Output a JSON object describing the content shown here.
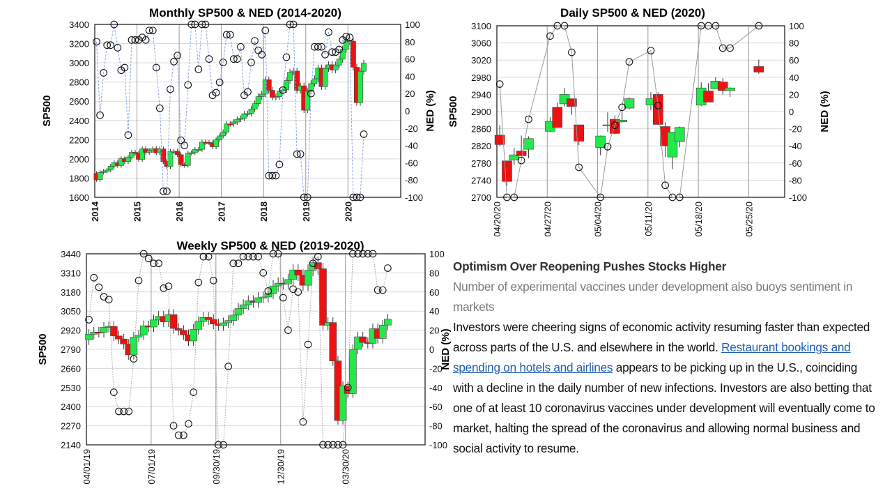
{
  "article": {
    "headline": "Optimism Over Reopening Pushes Stocks Higher",
    "subheadline": "Number of experimental vaccines under development also buoys sentiment in markets",
    "body_before_link": "Investors were cheering signs of economic activity resuming faster than expected across parts of the U.S. and elsewhere in the world. ",
    "link_text": "Restaurant bookings and spending on hotels and airlines",
    "body_after_link": " appears to be picking up in the U.S., coinciding with a decline in the daily number of new infections. Investors are also betting that one of at least 10 coronavirus vaccines under development will eventually come to market, halting the spread of the coronavirus and allowing normal business and social activity to resume."
  },
  "colors": {
    "up": "#22e84a",
    "down": "#ee1111",
    "monthly_line": "#8aa6dc",
    "ned_line": "#999999"
  },
  "chart_data": [
    {
      "id": "monthly",
      "type": "candlestick+line",
      "title": "Monthly SP500 & NED (2014-2020)",
      "ylabel": "SP500",
      "y2label": "NED (%)",
      "ylim": [
        1600,
        3400
      ],
      "y2lim": [
        -100,
        100
      ],
      "yticks": [
        "1600",
        "1800",
        "2000",
        "2200",
        "2400",
        "2600",
        "2800",
        "3000",
        "3200",
        "3400"
      ],
      "y2ticks": [
        "-100",
        "-80",
        "-60",
        "-40",
        "-20",
        "0",
        "20",
        "40",
        "60",
        "80",
        "100"
      ],
      "xticks": [
        "2014",
        "2015",
        "2016",
        "2017",
        "2018",
        "2019",
        "2020"
      ],
      "first_open": 1848,
      "close": [
        1783,
        1859,
        1872,
        1884,
        1924,
        1960,
        1931,
        2003,
        1972,
        2018,
        2068,
        2059,
        1995,
        2105,
        2068,
        2086,
        2107,
        2063,
        2104,
        1972,
        1920,
        2079,
        2080,
        2044,
        1940,
        1932,
        2060,
        2065,
        2097,
        2099,
        2174,
        2171,
        2168,
        2126,
        2199,
        2239,
        2279,
        2364,
        2363,
        2384,
        2412,
        2423,
        2470,
        2472,
        2519,
        2575,
        2648,
        2674,
        2824,
        2714,
        2641,
        2648,
        2705,
        2718,
        2816,
        2902,
        2914,
        2712,
        2760,
        2507,
        2704,
        2784,
        2834,
        2946,
        2752,
        2942,
        2980,
        2926,
        2977,
        3038,
        3141,
        3231,
        3226,
        2954,
        2585,
        2912,
        2995
      ],
      "ned": [
        80,
        -5,
        44,
        76,
        76,
        100,
        73,
        47,
        50,
        -28,
        82,
        82,
        82,
        85,
        82,
        93,
        93,
        50,
        3,
        -93,
        -93,
        25,
        57,
        64,
        -34,
        -40,
        30,
        100,
        100,
        48,
        100,
        100,
        60,
        18,
        21,
        33,
        56,
        88,
        88,
        60,
        60,
        74,
        18,
        22,
        56,
        81,
        70,
        65,
        93,
        -75,
        -75,
        -75,
        -62,
        24,
        62,
        100,
        100,
        -50,
        -50,
        -100,
        -100,
        20,
        74,
        74,
        74,
        65,
        91,
        68,
        68,
        71,
        82,
        86,
        85,
        -100,
        -100,
        -100,
        -27
      ]
    },
    {
      "id": "daily",
      "type": "candlestick+line",
      "title": "Daily SP500 & NED (2020)",
      "ylabel": "SP500",
      "y2label": "NED (%)",
      "ylim": [
        2700,
        3100
      ],
      "y2lim": [
        -100,
        100
      ],
      "yticks": [
        "2700",
        "2740",
        "2780",
        "2820",
        "2860",
        "2900",
        "2940",
        "2980",
        "3020",
        "3060",
        "3100"
      ],
      "y2ticks": [
        "-100",
        "-80",
        "-60",
        "-40",
        "-20",
        "0",
        "20",
        "40",
        "60",
        "80",
        "100"
      ],
      "xticks": [
        "04/20/20",
        "04/27/20",
        "05/04/20",
        "05/11/20",
        "05/18/20",
        "05/25/20"
      ],
      "dates": [
        "04/20",
        "04/21",
        "04/22",
        "04/23",
        "04/24",
        "04/27",
        "04/28",
        "04/29",
        "04/30",
        "05/01",
        "05/04",
        "05/05",
        "05/06",
        "05/07",
        "05/08",
        "05/11",
        "05/12",
        "05/13",
        "05/14",
        "05/15",
        "05/18",
        "05/19",
        "05/20",
        "05/21",
        "05/22",
        "05/26"
      ],
      "open": [
        2845,
        2785,
        2787,
        2808,
        2812,
        2854,
        2910,
        2918,
        2930,
        2869,
        2816,
        2868,
        2882,
        2876,
        2908,
        2915,
        2940,
        2865,
        2794,
        2830,
        2915,
        2948,
        2953,
        2969,
        2949,
        3005
      ],
      "close": [
        2823,
        2737,
        2799,
        2797,
        2837,
        2877,
        2863,
        2940,
        2912,
        2831,
        2843,
        2869,
        2849,
        2880,
        2930,
        2930,
        2870,
        2820,
        2852,
        2863,
        2955,
        2922,
        2971,
        2949,
        2955,
        2992
      ],
      "high": [
        2868,
        2785,
        2815,
        2844,
        2842,
        2887,
        2921,
        2955,
        2930,
        2869,
        2844,
        2898,
        2891,
        2900,
        2933,
        2945,
        2945,
        2875,
        2852,
        2865,
        2968,
        2966,
        2980,
        2978,
        2957,
        3021
      ],
      "low": [
        2820,
        2727,
        2776,
        2796,
        2791,
        2852,
        2862,
        2912,
        2892,
        2822,
        2798,
        2853,
        2847,
        2873,
        2905,
        2903,
        2869,
        2794,
        2766,
        2817,
        2913,
        2922,
        2953,
        2940,
        2934,
        2988
      ],
      "ned": [
        32,
        -100,
        -100,
        -57,
        -9,
        88,
        100,
        100,
        69,
        -65,
        -100,
        -41,
        -16,
        5,
        58,
        71,
        7,
        -86,
        -100,
        -100,
        100,
        100,
        100,
        74,
        74,
        100
      ]
    },
    {
      "id": "weekly",
      "type": "candlestick+line",
      "title": "Weekly SP500 & NED (2019-2020)",
      "ylabel": "SP500",
      "y2label": "NED (%)",
      "ylim": [
        2140,
        3440
      ],
      "y2lim": [
        -100,
        100
      ],
      "yticks": [
        "2140",
        "2270",
        "2400",
        "2530",
        "2660",
        "2790",
        "2920",
        "3050",
        "3180",
        "3310",
        "3440"
      ],
      "y2ticks": [
        "-100",
        "-80",
        "-60",
        "-40",
        "-20",
        "0",
        "20",
        "40",
        "60",
        "80",
        "100"
      ],
      "xticks": [
        "04/01/19",
        "07/01/19",
        "09/30/19",
        "12/30/19",
        "03/30/20"
      ],
      "first_open": 2855,
      "close": [
        2893,
        2907,
        2905,
        2940,
        2946,
        2881,
        2860,
        2826,
        2752,
        2873,
        2887,
        2950,
        2942,
        2990,
        3014,
        2977,
        3026,
        2932,
        2919,
        2889,
        2847,
        2926,
        2979,
        3007,
        2992,
        2962,
        2952,
        2970,
        2986,
        3023,
        3067,
        3093,
        3120,
        3110,
        3141,
        3146,
        3169,
        3221,
        3240,
        3235,
        3265,
        3330,
        3295,
        3226,
        3328,
        3380,
        3338,
        2954,
        2972,
        2711,
        2305,
        2541,
        2489,
        2790,
        2875,
        2837,
        2831,
        2930,
        2864,
        2955,
        2995
      ],
      "ned": [
        31,
        75,
        65,
        55,
        52,
        -45,
        -65,
        -65,
        -65,
        -10,
        72,
        100,
        95,
        90,
        90,
        64,
        66,
        -80,
        -90,
        -90,
        -78,
        -45,
        70,
        97,
        97,
        72,
        -100,
        -100,
        -18,
        90,
        90,
        97,
        97,
        97,
        97,
        80,
        61,
        100,
        100,
        54,
        20,
        63,
        60,
        -76,
        5,
        90,
        97,
        -100,
        -100,
        -100,
        -100,
        -100,
        -40,
        100,
        100,
        100,
        100,
        100,
        62,
        62,
        85
      ]
    }
  ]
}
